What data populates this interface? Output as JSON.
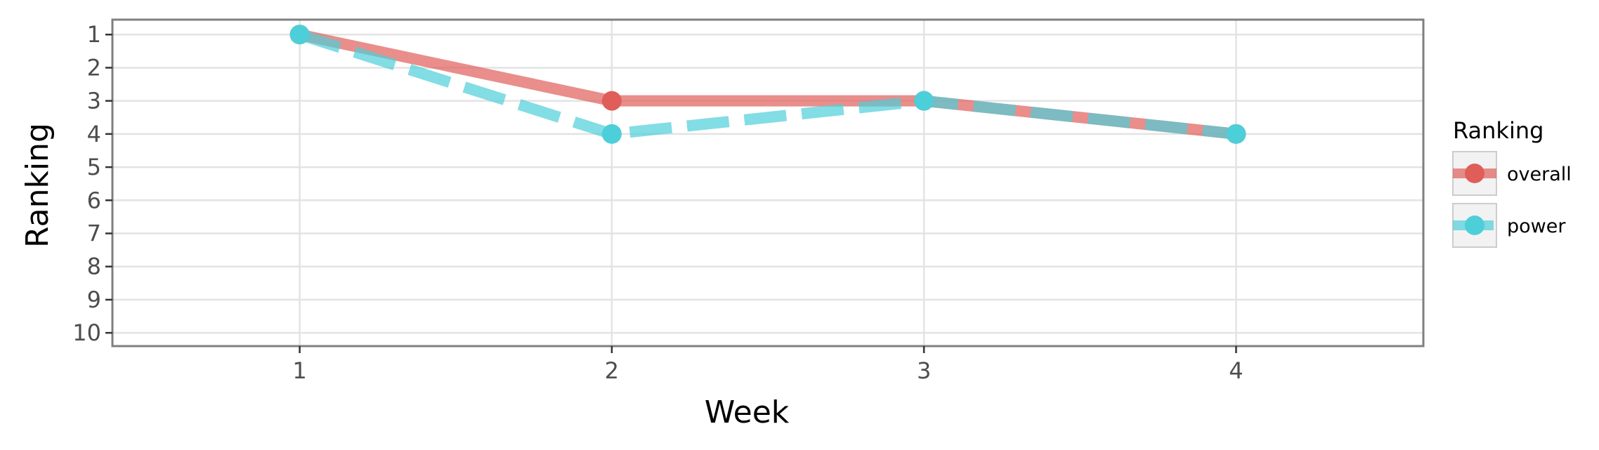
{
  "chart_data": {
    "type": "line",
    "xlabel": "Week",
    "ylabel": "Ranking",
    "x": [
      1,
      2,
      3,
      4
    ],
    "xlim": [
      0.4,
      4.6
    ],
    "ylim": [
      10.4,
      0.55
    ],
    "y_inverted": true,
    "x_ticks": [
      "1",
      "2",
      "3",
      "4"
    ],
    "y_ticks": [
      "1",
      "2",
      "3",
      "4",
      "5",
      "6",
      "7",
      "8",
      "9",
      "10"
    ],
    "grid": true,
    "legend": {
      "title": "Ranking",
      "position": "right"
    },
    "series": [
      {
        "name": "overall",
        "values": [
          1,
          3,
          3,
          4
        ],
        "color": "#df5e5a",
        "line_style": "solid"
      },
      {
        "name": "power",
        "values": [
          1,
          4,
          3,
          4
        ],
        "color": "#4dcfd9",
        "line_style": "dashed"
      }
    ]
  }
}
